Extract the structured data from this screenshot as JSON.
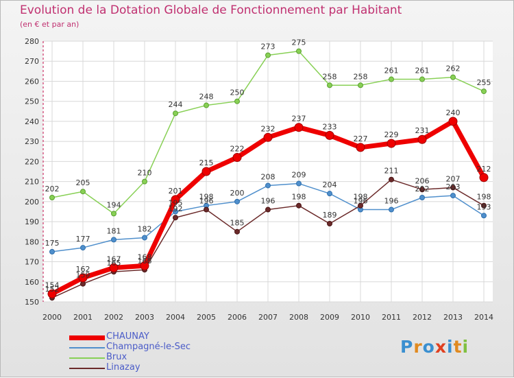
{
  "title": "Evolution de la Dotation Globale de Fonctionnement par Habitant",
  "subtitle": "(en € et par an)",
  "logo": "Proxiti",
  "chart_data": {
    "type": "line",
    "title": "Evolution de la Dotation Globale de Fonctionnement par Habitant",
    "subtitle": "(en € et par an)",
    "xlabel": "",
    "ylabel": "",
    "x": [
      "2000",
      "2001",
      "2002",
      "2003",
      "2004",
      "2005",
      "2006",
      "2007",
      "2008",
      "2009",
      "2010",
      "2011",
      "2012",
      "2013",
      "2014"
    ],
    "ylim": [
      150,
      280
    ],
    "yticks": [
      150,
      160,
      170,
      180,
      190,
      200,
      210,
      220,
      230,
      240,
      250,
      260,
      270,
      280
    ],
    "grid": true,
    "legend_position": "bottom-left",
    "series": [
      {
        "name": "CHAUNAY",
        "color": "#ee0000",
        "values": [
          154,
          162,
          167,
          168,
          201,
          215,
          222,
          232,
          237,
          233,
          227,
          229,
          231,
          240,
          212
        ]
      },
      {
        "name": "Champagné-le-Sec",
        "color": "#4f8fcc",
        "values": [
          175,
          177,
          181,
          182,
          195,
          198,
          200,
          208,
          209,
          204,
          196,
          196,
          202,
          203,
          193
        ]
      },
      {
        "name": "Brux",
        "color": "#88d055",
        "values": [
          202,
          205,
          194,
          210,
          244,
          248,
          250,
          273,
          275,
          258,
          258,
          261,
          261,
          262,
          255
        ]
      },
      {
        "name": "Linazay",
        "color": "#6b2a2a",
        "values": [
          152,
          159,
          165,
          166,
          192,
          196,
          185,
          196,
          198,
          189,
          198,
          211,
          206,
          207,
          198
        ]
      }
    ]
  }
}
